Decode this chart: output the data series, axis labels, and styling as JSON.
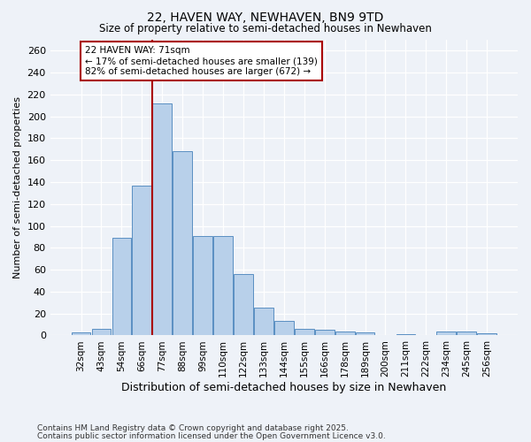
{
  "title_line1": "22, HAVEN WAY, NEWHAVEN, BN9 9TD",
  "title_line2": "Size of property relative to semi-detached houses in Newhaven",
  "xlabel": "Distribution of semi-detached houses by size in Newhaven",
  "ylabel": "Number of semi-detached properties",
  "categories": [
    "32sqm",
    "43sqm",
    "54sqm",
    "66sqm",
    "77sqm",
    "88sqm",
    "99sqm",
    "110sqm",
    "122sqm",
    "133sqm",
    "144sqm",
    "155sqm",
    "166sqm",
    "178sqm",
    "189sqm",
    "200sqm",
    "211sqm",
    "222sqm",
    "234sqm",
    "245sqm",
    "256sqm"
  ],
  "values": [
    3,
    6,
    89,
    137,
    212,
    168,
    91,
    91,
    56,
    25,
    13,
    6,
    5,
    4,
    3,
    0,
    1,
    0,
    4,
    4,
    2
  ],
  "bar_color": "#b8d0ea",
  "bar_edge_color": "#5a8fc2",
  "property_label": "22 HAVEN WAY: 71sqm",
  "pct_smaller": 17,
  "pct_larger": 82,
  "count_smaller": 139,
  "count_larger": 672,
  "vline_color": "#aa0000",
  "annotation_box_color": "#aa0000",
  "ylim": [
    0,
    270
  ],
  "yticks": [
    0,
    20,
    40,
    60,
    80,
    100,
    120,
    140,
    160,
    180,
    200,
    220,
    240,
    260
  ],
  "footnote_line1": "Contains HM Land Registry data © Crown copyright and database right 2025.",
  "footnote_line2": "Contains public sector information licensed under the Open Government Licence v3.0.",
  "background_color": "#eef2f8"
}
